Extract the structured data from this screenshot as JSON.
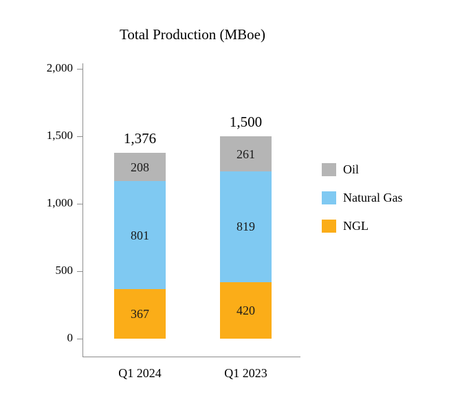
{
  "chart_data": {
    "type": "bar",
    "stacked": true,
    "title": "Total Production (MBoe)",
    "categories": [
      "Q1 2024",
      "Q1 2023"
    ],
    "series": [
      {
        "name": "NGL",
        "color": "#FBAD18",
        "values": [
          367,
          420
        ]
      },
      {
        "name": "Natural Gas",
        "color": "#7FC9F2",
        "values": [
          801,
          819
        ]
      },
      {
        "name": "Oil",
        "color": "#B5B5B5",
        "values": [
          208,
          261
        ]
      }
    ],
    "totals": [
      1376,
      1500
    ],
    "total_labels": [
      "1,376",
      "1,500"
    ],
    "ylim": [
      0,
      2000
    ],
    "yticks": [
      0,
      500,
      1000,
      1500,
      2000
    ],
    "ytick_labels": [
      "0",
      "500",
      "1,000",
      "1,500",
      "2,000"
    ],
    "legend": [
      "Oil",
      "Natural Gas",
      "NGL"
    ],
    "legend_position": "right",
    "grid": false,
    "axis_color": "#8c8c8c"
  }
}
